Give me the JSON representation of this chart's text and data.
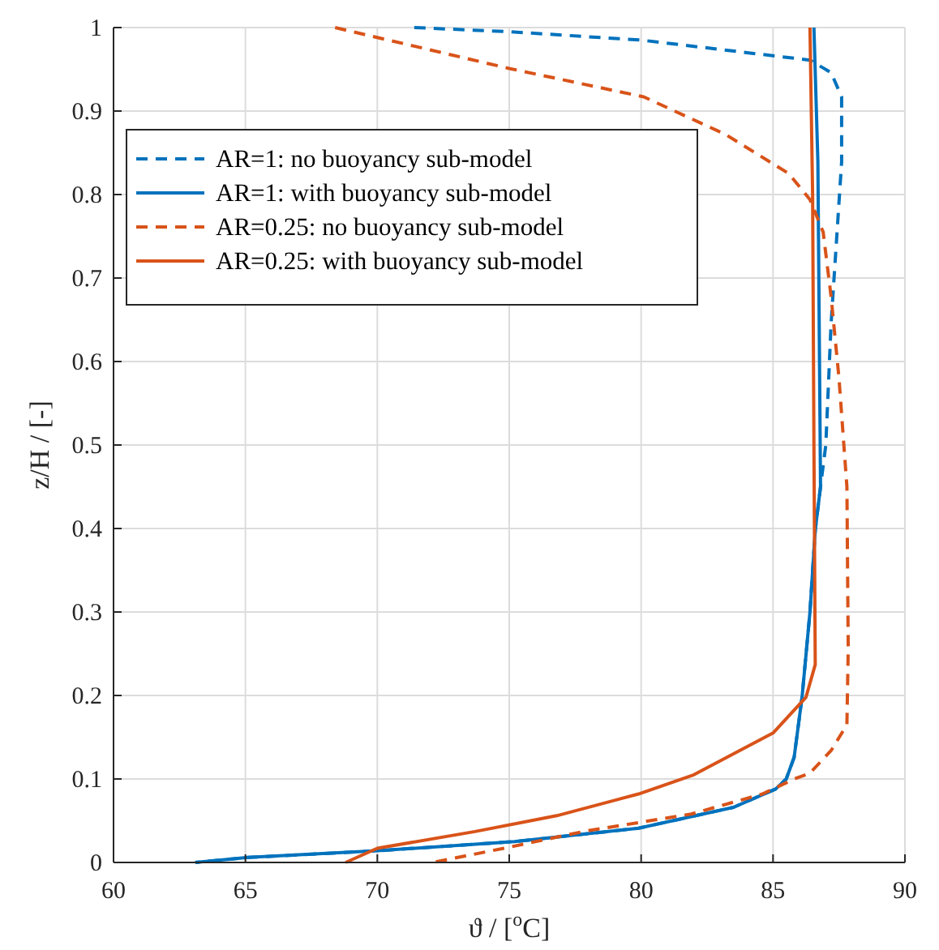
{
  "chart_data": {
    "type": "line",
    "xlabel": "ϑ / [$^{o}$C]",
    "ylabel": "z/H / [-]",
    "xlim": [
      60,
      90
    ],
    "xticks": [
      60,
      65,
      70,
      75,
      80,
      85,
      90
    ],
    "ylim": [
      0,
      1
    ],
    "yticks": [
      0,
      0.1,
      0.2,
      0.3,
      0.4,
      0.5,
      0.6,
      0.7,
      0.8,
      0.9,
      1
    ],
    "grid": true,
    "legend": "top left",
    "marker": "none",
    "series": [
      {
        "name": "AR=1: no buoyancy sub-model",
        "color": "#0072bd",
        "line_style": "dashed",
        "x": [
          71.4,
          75,
          80,
          84,
          86.4,
          87.2,
          87.6,
          87.6,
          87.2,
          87,
          86.8,
          86.6,
          86.4,
          86.1,
          85.8,
          85.5,
          85.1,
          83.5,
          79.9,
          75.2,
          70,
          65.1,
          63.1
        ],
        "values": [
          1,
          0.995,
          0.985,
          0.97,
          0.961,
          0.946,
          0.917,
          0.839,
          0.645,
          0.5,
          0.45,
          0.398,
          0.3,
          0.198,
          0.126,
          0.1,
          0.088,
          0.066,
          0.041,
          0.025,
          0.014,
          0.006,
          0
        ]
      },
      {
        "name": "AR=1: with buoyancy sub-model",
        "color": "#0072bd",
        "line_style": "solid",
        "x": [
          86.55,
          86.7,
          86.8,
          86.6,
          86.4,
          86.1,
          85.8,
          85.5,
          85.1,
          83.5,
          79.9,
          75.2,
          70,
          65.1,
          63.1
        ],
        "values": [
          1,
          0.839,
          0.45,
          0.398,
          0.3,
          0.198,
          0.126,
          0.1,
          0.088,
          0.066,
          0.041,
          0.025,
          0.014,
          0.006,
          0
        ]
      },
      {
        "name": "AR=0.25: no buoyancy sub-model",
        "color": "#d95319",
        "line_style": "dashed",
        "x": [
          68.4,
          75,
          80.1,
          83.2,
          85.6,
          86.4,
          86.9,
          87.2,
          87.5,
          87.8,
          87.85,
          87.8,
          87.2,
          86.4,
          85.8,
          84.6,
          81.9,
          77.8,
          74.8,
          72.1
        ],
        "values": [
          1,
          0.951,
          0.917,
          0.872,
          0.825,
          0.794,
          0.755,
          0.678,
          0.58,
          0.45,
          0.256,
          0.165,
          0.134,
          0.107,
          0.1,
          0.082,
          0.058,
          0.037,
          0.017,
          0
        ]
      },
      {
        "name": "AR=0.25: with buoyancy sub-model",
        "color": "#d95319",
        "line_style": "solid",
        "x": [
          86.4,
          86.5,
          86.55,
          86.6,
          86.25,
          85,
          83.5,
          82,
          79.9,
          76.8,
          73.7,
          70,
          68.8
        ],
        "values": [
          1,
          0.8,
          0.5,
          0.237,
          0.198,
          0.155,
          0.13,
          0.105,
          0.082,
          0.056,
          0.037,
          0.017,
          0
        ]
      }
    ]
  }
}
